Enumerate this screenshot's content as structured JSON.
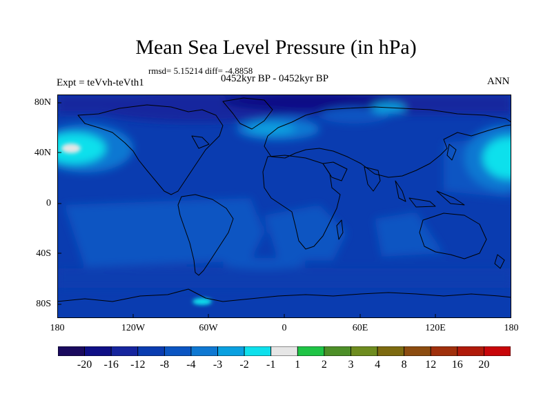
{
  "title": "Mean Sea Level Pressure (in hPa)",
  "stats": "rmsd= 5.15214 diff= -4.8858",
  "period": "0452kyr BP - 0452kyr BP",
  "experiment": "Expt = teVvh-teVth1",
  "season": "ANN",
  "y_axis_labels": [
    "80N",
    "40N",
    "0",
    "40S",
    "80S"
  ],
  "x_axis_labels": [
    "180",
    "120W",
    "60W",
    "0",
    "60E",
    "120E",
    "180"
  ],
  "colorbar": {
    "colors": [
      "#1a0a5e",
      "#0f0f86",
      "#16259e",
      "#0a3cb0",
      "#0b55c2",
      "#0f78d2",
      "#0aa0e0",
      "#0ee0ec",
      "#e6e6e6",
      "#1fc446",
      "#4d8f28",
      "#6e8c1f",
      "#7d6a10",
      "#8c4c10",
      "#a0300c",
      "#b01a0a",
      "#c8060a"
    ],
    "labels": [
      "-20",
      "-16",
      "-12",
      "-8",
      "-4",
      "-3",
      "-2",
      "-1",
      "1",
      "2",
      "3",
      "4",
      "8",
      "12",
      "16",
      "20"
    ]
  },
  "map": {
    "background_level": "-8",
    "ocean_level": "-4",
    "pole_level": "-12",
    "high_anomaly_levels": [
      "-2",
      "-1"
    ],
    "projection": "cylindrical equidistant",
    "lon_range": [
      -180,
      180
    ],
    "lat_range": [
      -90,
      90
    ]
  }
}
